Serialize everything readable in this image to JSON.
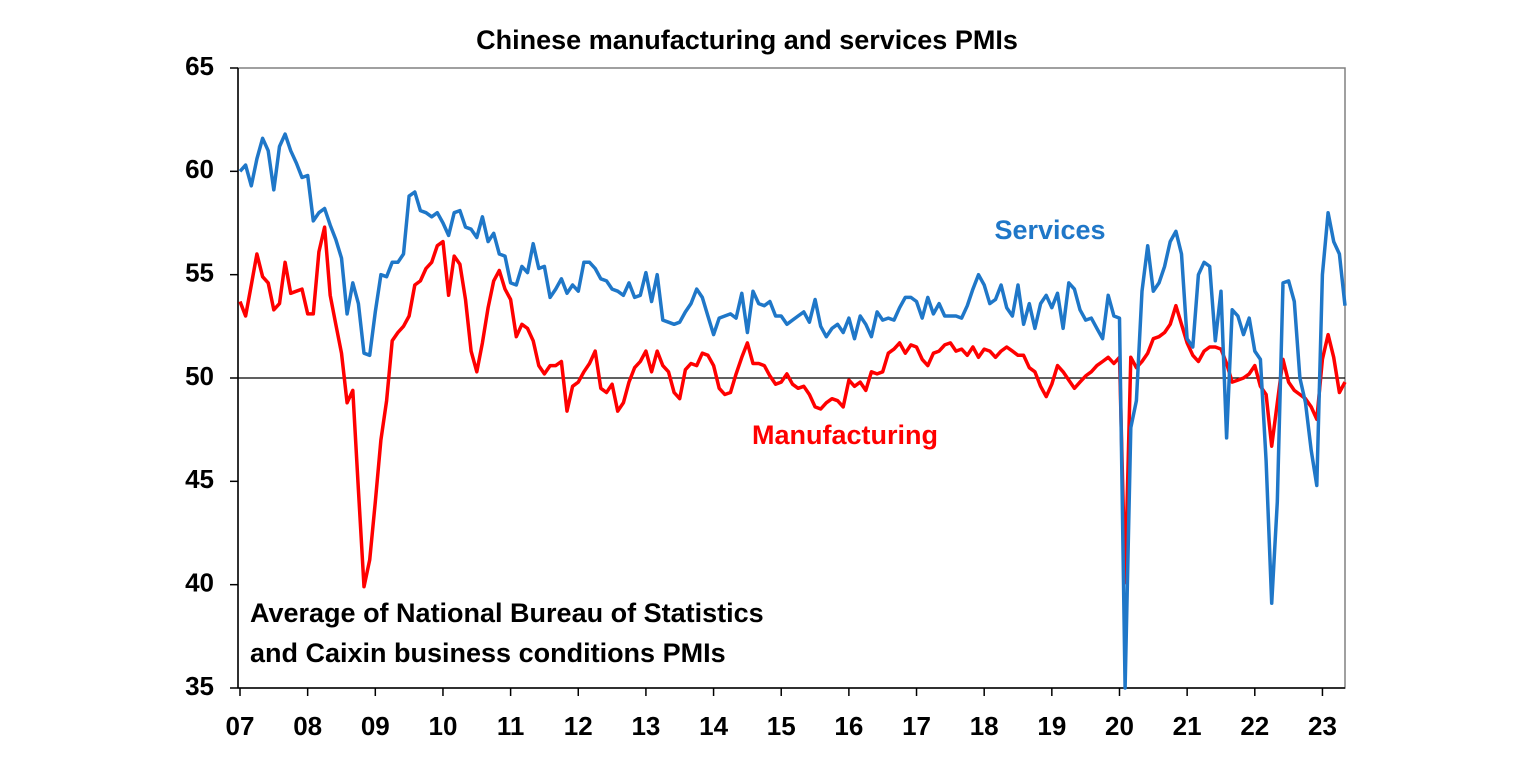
{
  "chart_data": {
    "type": "line",
    "title": "Chinese manufacturing and services PMIs",
    "annotations": [
      {
        "text": "Services",
        "color": "#1f77c8"
      },
      {
        "text": "Manufacturing",
        "color": "#ff0000"
      },
      {
        "text": "Average of National Bureau of Statistics"
      },
      {
        "text": "and Caixin business conditions PMIs"
      }
    ],
    "categories": [
      "07",
      null,
      null,
      null,
      null,
      null,
      null,
      null,
      null,
      null,
      null,
      null,
      "08",
      null,
      null,
      null,
      null,
      null,
      null,
      null,
      null,
      null,
      null,
      null,
      "09",
      null,
      null,
      null,
      null,
      null,
      null,
      null,
      null,
      null,
      null,
      null,
      "10",
      null,
      null,
      null,
      null,
      null,
      null,
      null,
      null,
      null,
      null,
      null,
      "11",
      null,
      null,
      null,
      null,
      null,
      null,
      null,
      null,
      null,
      null,
      null,
      "12",
      null,
      null,
      null,
      null,
      null,
      null,
      null,
      null,
      null,
      null,
      null,
      "13",
      null,
      null,
      null,
      null,
      null,
      null,
      null,
      null,
      null,
      null,
      null,
      "14",
      null,
      null,
      null,
      null,
      null,
      null,
      null,
      null,
      null,
      null,
      null,
      "15",
      null,
      null,
      null,
      null,
      null,
      null,
      null,
      null,
      null,
      null,
      null,
      "16",
      null,
      null,
      null,
      null,
      null,
      null,
      null,
      null,
      null,
      null,
      null,
      "17",
      null,
      null,
      null,
      null,
      null,
      null,
      null,
      null,
      null,
      null,
      null,
      "18",
      null,
      null,
      null,
      null,
      null,
      null,
      null,
      null,
      null,
      null,
      null,
      "19",
      null,
      null,
      null,
      null,
      null,
      null,
      null,
      null,
      null,
      null,
      null,
      "20",
      null,
      null,
      null,
      null,
      null,
      null,
      null,
      null,
      null,
      null,
      null,
      "21",
      null,
      null,
      null,
      null,
      null,
      null,
      null,
      null,
      null,
      null,
      null,
      "22",
      null,
      null,
      null,
      null,
      null,
      null,
      null,
      null,
      null,
      null,
      null,
      "23",
      null,
      null,
      null,
      null
    ],
    "series": [
      {
        "name": "Services",
        "color": "#1f77c8",
        "values": [
          60.0,
          60.3,
          59.3,
          60.6,
          61.6,
          61.0,
          59.1,
          61.2,
          61.8,
          61.0,
          60.4,
          59.7,
          59.8,
          57.6,
          58.0,
          58.2,
          57.4,
          56.7,
          55.8,
          53.1,
          54.6,
          53.6,
          51.2,
          51.1,
          53.2,
          55.0,
          54.9,
          55.6,
          55.6,
          56.0,
          58.8,
          59.0,
          58.1,
          58.0,
          57.8,
          58.0,
          57.5,
          56.9,
          58.0,
          58.1,
          57.3,
          57.2,
          56.8,
          57.8,
          56.6,
          57.0,
          56.0,
          55.9,
          54.6,
          54.5,
          55.4,
          55.1,
          56.5,
          55.3,
          55.4,
          53.9,
          54.3,
          54.8,
          54.1,
          54.5,
          54.2,
          55.6,
          55.6,
          55.3,
          54.8,
          54.7,
          54.3,
          54.2,
          54.0,
          54.6,
          53.9,
          54.0,
          55.1,
          53.7,
          55.0,
          52.8,
          52.7,
          52.6,
          52.7,
          53.2,
          53.6,
          54.3,
          53.9,
          53.0,
          52.1,
          52.9,
          53.0,
          53.1,
          52.9,
          54.1,
          52.2,
          54.2,
          53.6,
          53.5,
          53.7,
          53.0,
          53.0,
          52.6,
          52.8,
          53.0,
          53.2,
          52.7,
          53.8,
          52.5,
          52.0,
          52.4,
          52.6,
          52.2,
          52.9,
          51.9,
          53.0,
          52.6,
          52.0,
          53.2,
          52.8,
          52.9,
          52.8,
          53.4,
          53.9,
          53.9,
          53.7,
          52.9,
          53.9,
          53.1,
          53.6,
          53.0,
          53.0,
          53.0,
          52.9,
          53.5,
          54.3,
          55.0,
          54.5,
          53.6,
          53.8,
          54.5,
          53.4,
          53.0,
          54.5,
          52.6,
          53.6,
          52.4,
          53.6,
          54.0,
          53.4,
          54.1,
          52.4,
          54.6,
          54.3,
          53.3,
          52.8,
          52.9,
          52.4,
          51.9,
          54.0,
          53.0,
          52.9,
          35.0,
          47.6,
          48.9,
          54.2,
          56.4,
          54.2,
          54.6,
          55.4,
          56.6,
          57.1,
          56.0,
          51.9,
          51.5,
          55.0,
          55.6,
          55.4,
          51.8,
          54.2,
          47.1,
          53.3,
          53.0,
          52.1,
          52.9,
          51.3,
          50.9,
          46.0,
          39.1,
          44.0,
          54.6,
          54.7,
          53.7,
          50.0,
          48.8,
          46.5,
          44.8,
          55.0,
          58.0,
          56.6,
          56.0,
          53.5
        ]
      },
      {
        "name": "Manufacturing",
        "color": "#ff0000",
        "values": [
          53.7,
          53.0,
          54.5,
          56.0,
          54.9,
          54.6,
          53.3,
          53.6,
          55.6,
          54.1,
          54.2,
          54.3,
          53.1,
          53.1,
          56.1,
          57.3,
          54.0,
          52.6,
          51.2,
          48.8,
          49.4,
          44.6,
          39.9,
          41.2,
          44.0,
          47.0,
          48.9,
          51.8,
          52.2,
          52.5,
          53.0,
          54.5,
          54.7,
          55.3,
          55.6,
          56.4,
          56.6,
          54.0,
          55.9,
          55.5,
          53.8,
          51.3,
          50.3,
          51.7,
          53.4,
          54.7,
          55.2,
          54.3,
          53.8,
          52.0,
          52.6,
          52.4,
          51.8,
          50.6,
          50.2,
          50.6,
          50.6,
          50.8,
          48.4,
          49.6,
          49.8,
          50.3,
          50.7,
          51.3,
          49.5,
          49.3,
          49.7,
          48.4,
          48.8,
          49.8,
          50.5,
          50.8,
          51.3,
          50.3,
          51.3,
          50.6,
          50.3,
          49.3,
          49.0,
          50.4,
          50.7,
          50.6,
          51.2,
          51.1,
          50.6,
          49.5,
          49.2,
          49.3,
          50.2,
          51.0,
          51.7,
          50.7,
          50.7,
          50.6,
          50.1,
          49.7,
          49.8,
          50.2,
          49.7,
          49.5,
          49.6,
          49.2,
          48.6,
          48.5,
          48.8,
          49.0,
          48.9,
          48.6,
          49.9,
          49.6,
          49.8,
          49.4,
          50.3,
          50.2,
          50.3,
          51.2,
          51.4,
          51.7,
          51.2,
          51.6,
          51.5,
          50.9,
          50.6,
          51.2,
          51.3,
          51.6,
          51.7,
          51.3,
          51.4,
          51.1,
          51.5,
          51.0,
          51.4,
          51.3,
          51.0,
          51.3,
          51.5,
          51.3,
          51.1,
          51.1,
          50.5,
          50.3,
          49.6,
          49.1,
          49.7,
          50.6,
          50.3,
          49.9,
          49.5,
          49.8,
          50.1,
          50.3,
          50.6,
          50.8,
          51.0,
          50.7,
          51.0,
          40.1,
          51.0,
          50.5,
          50.8,
          51.2,
          51.9,
          52.0,
          52.2,
          52.6,
          53.5,
          52.6,
          51.7,
          51.1,
          50.8,
          51.3,
          51.5,
          51.5,
          51.4,
          50.7,
          49.8,
          49.9,
          50.0,
          50.2,
          50.6,
          49.6,
          49.2,
          46.7,
          48.8,
          50.9,
          49.8,
          49.4,
          49.2,
          49.0,
          48.6,
          48.0,
          50.9,
          52.1,
          51.0,
          49.3,
          49.8
        ]
      }
    ],
    "ylim": [
      35,
      65
    ],
    "yticks": [
      35,
      40,
      45,
      50,
      55,
      60,
      65
    ],
    "hline": 50,
    "grid": false
  }
}
